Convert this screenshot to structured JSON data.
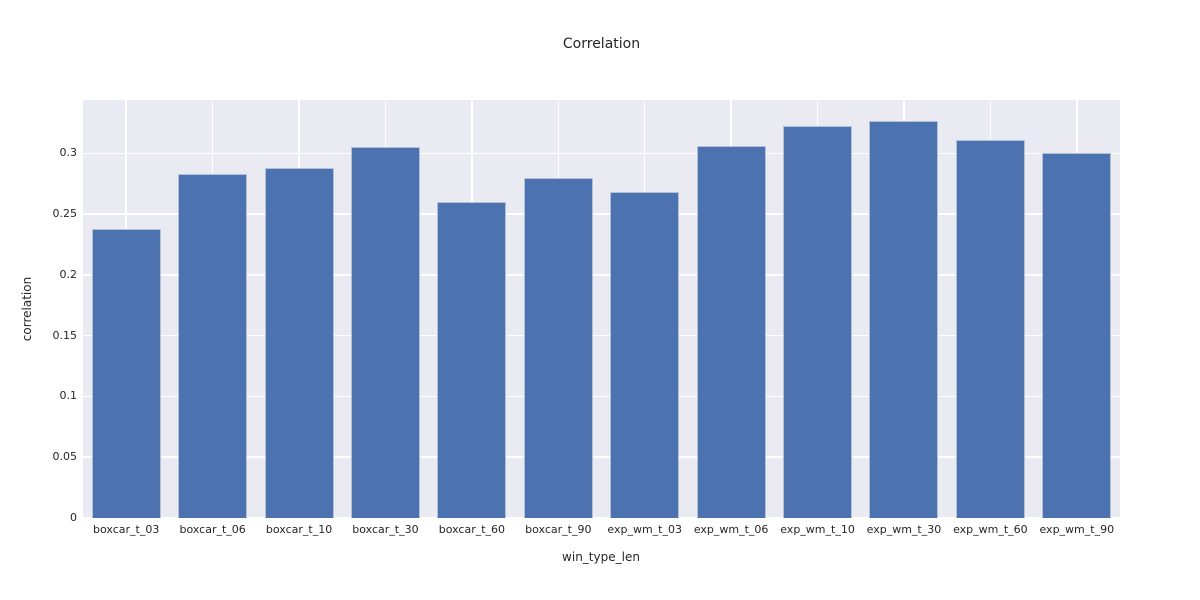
{
  "chart_data": {
    "type": "bar",
    "title": "Correlation",
    "xlabel": "win_type_len",
    "ylabel": "correlation",
    "categories": [
      "boxcar_t_03",
      "boxcar_t_06",
      "boxcar_t_10",
      "boxcar_t_30",
      "boxcar_t_60",
      "boxcar_t_90",
      "exp_wm_t_03",
      "exp_wm_t_06",
      "exp_wm_t_10",
      "exp_wm_t_30",
      "exp_wm_t_60",
      "exp_wm_t_90"
    ],
    "values": [
      0.238,
      0.283,
      0.288,
      0.305,
      0.26,
      0.28,
      0.268,
      0.306,
      0.323,
      0.327,
      0.311,
      0.3
    ],
    "yticks": [
      0,
      0.05,
      0.1,
      0.15,
      0.2,
      0.25,
      0.3
    ],
    "ytick_labels": [
      "0",
      "0.05",
      "0.1",
      "0.15",
      "0.2",
      "0.25",
      "0.3"
    ],
    "ylim": [
      0,
      0.344
    ],
    "grid": true,
    "legend": false,
    "colors": {
      "figure_bg": "#ffffff",
      "plot_bg": "#eaeaf2",
      "grid": "#ffffff",
      "bar": "#4c72b0",
      "bar_edge": "#b2c0dc",
      "text": "#262626"
    }
  }
}
